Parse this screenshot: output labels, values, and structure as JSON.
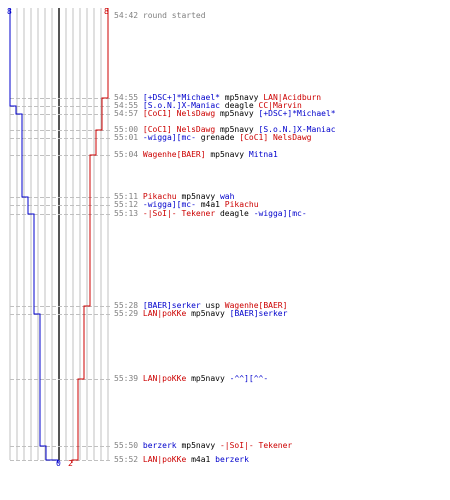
{
  "colors": {
    "blue": "#0000cc",
    "red": "#cc0000",
    "grid": "#c0c0c0",
    "axis": "#555555",
    "time": "#808080"
  },
  "labels": {
    "blue_top": "8",
    "red_top": "8",
    "blue_bottom": "0",
    "red_bottom": "2"
  },
  "chart_data": {
    "type": "line",
    "title": "",
    "xlabel": "",
    "ylabel": "",
    "series": [
      {
        "color": "#0000cc",
        "counts": [
          8,
          8,
          8,
          7,
          6,
          6,
          6,
          6,
          5,
          5,
          4,
          4,
          3,
          3,
          2,
          1,
          0
        ]
      },
      {
        "color": "#cc0000",
        "counts": [
          8,
          8,
          7,
          7,
          7,
          6,
          6,
          5,
          5,
          5,
          5,
          4,
          4,
          3,
          3,
          3,
          2
        ]
      }
    ]
  },
  "events": [
    {
      "time": "54:42",
      "parts": [
        {
          "text": "round started",
          "cls": "gray"
        }
      ]
    },
    {
      "time": "54:55",
      "parts": [
        {
          "text": "[+DSC+]*Michael*",
          "cls": "blue"
        },
        {
          "text": " mp5navy ",
          "cls": "w"
        },
        {
          "text": "LAN|Acidburn",
          "cls": "red"
        }
      ]
    },
    {
      "time": "54:55",
      "parts": [
        {
          "text": "[S.o.N.]X-Maniac",
          "cls": "blue"
        },
        {
          "text": " deagle ",
          "cls": "w"
        },
        {
          "text": "CC|Marvin",
          "cls": "red"
        }
      ]
    },
    {
      "time": "54:57",
      "parts": [
        {
          "text": "[CoC1] NelsDawg",
          "cls": "red"
        },
        {
          "text": " mp5navy ",
          "cls": "w"
        },
        {
          "text": "[+DSC+]*Michael*",
          "cls": "blue"
        }
      ]
    },
    {
      "time": "55:00",
      "parts": [
        {
          "text": "[CoC1] NelsDawg",
          "cls": "red"
        },
        {
          "text": " mp5navy ",
          "cls": "w"
        },
        {
          "text": "[S.o.N.]X-Maniac",
          "cls": "blue"
        }
      ]
    },
    {
      "time": "55:01",
      "parts": [
        {
          "text": "-wigga][mc-",
          "cls": "blue"
        },
        {
          "text": " grenade ",
          "cls": "w"
        },
        {
          "text": "[CoC1] NelsDawg",
          "cls": "red"
        }
      ]
    },
    {
      "time": "55:04",
      "parts": [
        {
          "text": "Wagenhe[BAER]",
          "cls": "red"
        },
        {
          "text": " mp5navy ",
          "cls": "w"
        },
        {
          "text": "Mitna1",
          "cls": "blue"
        }
      ]
    },
    {
      "time": "55:11",
      "parts": [
        {
          "text": "Pikachu",
          "cls": "red"
        },
        {
          "text": " mp5navy ",
          "cls": "w"
        },
        {
          "text": "wah",
          "cls": "blue"
        }
      ]
    },
    {
      "time": "55:12",
      "parts": [
        {
          "text": "-wigga][mc-",
          "cls": "blue"
        },
        {
          "text": " m4a1 ",
          "cls": "w"
        },
        {
          "text": "Pikachu",
          "cls": "red"
        }
      ]
    },
    {
      "time": "55:13",
      "parts": [
        {
          "text": "-|SoI|- Tekener",
          "cls": "red"
        },
        {
          "text": " deagle ",
          "cls": "w"
        },
        {
          "text": "-wigga][mc-",
          "cls": "blue"
        }
      ]
    },
    {
      "time": "55:28",
      "parts": [
        {
          "text": "[BAER]serker",
          "cls": "blue"
        },
        {
          "text": " usp ",
          "cls": "w"
        },
        {
          "text": "Wagenhe[BAER]",
          "cls": "red"
        }
      ]
    },
    {
      "time": "55:29",
      "parts": [
        {
          "text": "LAN|poKKe",
          "cls": "red"
        },
        {
          "text": " mp5navy ",
          "cls": "w"
        },
        {
          "text": "[BAER]serker",
          "cls": "blue"
        }
      ]
    },
    {
      "time": "55:39",
      "parts": [
        {
          "text": "LAN|poKKe",
          "cls": "red"
        },
        {
          "text": " mp5navy ",
          "cls": "w"
        },
        {
          "text": "-^^][^^-",
          "cls": "blue"
        }
      ]
    },
    {
      "time": "55:50",
      "parts": [
        {
          "text": "berzerk",
          "cls": "blue"
        },
        {
          "text": " mp5navy ",
          "cls": "w"
        },
        {
          "text": "-|SoI|- Tekener",
          "cls": "red"
        }
      ]
    },
    {
      "time": "55:52",
      "parts": [
        {
          "text": "LAN|poKKe",
          "cls": "red"
        },
        {
          "text": " m4a1 ",
          "cls": "w"
        },
        {
          "text": "berzerk",
          "cls": "blue"
        }
      ]
    }
  ]
}
